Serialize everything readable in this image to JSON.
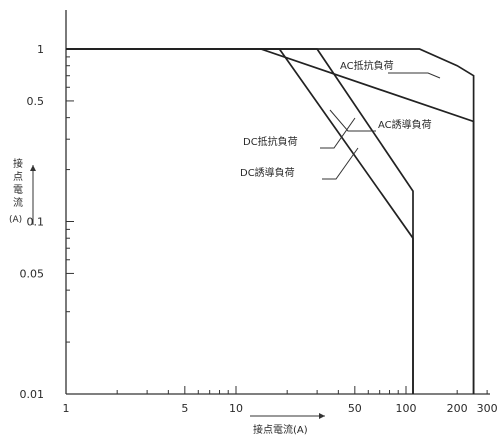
{
  "chart_data": {
    "type": "line",
    "title": "",
    "x_axis": {
      "label": "接点電流(A)",
      "scale": "log",
      "range": [
        1,
        300
      ],
      "tick_labels": [
        "1",
        "5",
        "10",
        "50",
        "100",
        "200",
        "300"
      ]
    },
    "y_axis": {
      "label": "接点電流",
      "unit": "(A)",
      "scale": "log",
      "range": [
        0.01,
        1
      ],
      "tick_labels": [
        "1",
        "0.5",
        "0.1",
        "0.05",
        "0.01"
      ]
    },
    "grid": false,
    "series": [
      {
        "name": "AC抵抗負荷",
        "points": [
          [
            1,
            1
          ],
          [
            120,
            1
          ],
          [
            200,
            0.8
          ],
          [
            250,
            0.7
          ],
          [
            250,
            0.01
          ]
        ]
      },
      {
        "name": "AC誘導負荷",
        "points": [
          [
            1,
            1
          ],
          [
            14,
            1
          ],
          [
            250,
            0.38
          ],
          [
            250,
            0.01
          ]
        ]
      },
      {
        "name": "DC抵抗負荷",
        "points": [
          [
            1,
            1
          ],
          [
            30,
            1
          ],
          [
            110,
            0.15
          ],
          [
            110,
            0.01
          ]
        ]
      },
      {
        "name": "DC誘導負荷",
        "points": [
          [
            1,
            1
          ],
          [
            18,
            1
          ],
          [
            110,
            0.08
          ],
          [
            110,
            0.01
          ]
        ]
      }
    ],
    "legend_position": "inline callouts"
  }
}
